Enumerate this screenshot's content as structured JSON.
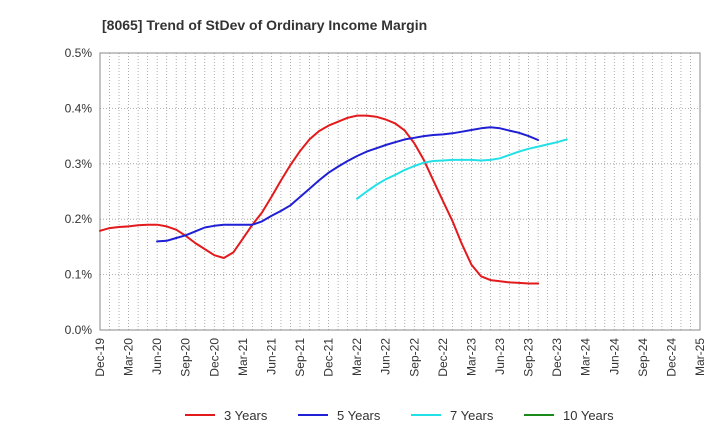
{
  "chart_data": {
    "type": "line",
    "title": "[8065]  Trend of StDev of Ordinary Income Margin",
    "xlabel": "",
    "ylabel": "",
    "x_ticks": [
      "Dec-19",
      "Mar-20",
      "Jun-20",
      "Sep-20",
      "Dec-20",
      "Mar-21",
      "Jun-21",
      "Sep-21",
      "Dec-21",
      "Mar-22",
      "Jun-22",
      "Sep-22",
      "Dec-22",
      "Mar-23",
      "Jun-23",
      "Sep-23",
      "Dec-23",
      "Mar-24",
      "Jun-24",
      "Sep-24",
      "Dec-24",
      "Mar-25"
    ],
    "y_ticks": [
      "0.0%",
      "0.1%",
      "0.2%",
      "0.3%",
      "0.4%",
      "0.5%"
    ],
    "ylim": [
      0,
      0.5
    ],
    "grid": true,
    "legend_position": "bottom",
    "series": [
      {
        "name": "3 Years",
        "color": "#e31a1c",
        "start_index": 0,
        "values": [
          0.179,
          0.184,
          0.186,
          0.187,
          0.189,
          0.19,
          0.19,
          0.187,
          0.181,
          0.17,
          0.157,
          0.146,
          0.135,
          0.13,
          0.14,
          0.165,
          0.19,
          0.212,
          0.24,
          0.27,
          0.298,
          0.323,
          0.344,
          0.359,
          0.369,
          0.376,
          0.383,
          0.387,
          0.387,
          0.385,
          0.38,
          0.373,
          0.36,
          0.337,
          0.307,
          0.27,
          0.233,
          0.197,
          0.155,
          0.118,
          0.097,
          0.09,
          0.088,
          0.086,
          0.085,
          0.084,
          0.084
        ]
      },
      {
        "name": "5 Years",
        "color": "#1f1fd6",
        "start_index": 6,
        "values": [
          0.16,
          0.161,
          0.166,
          0.171,
          0.178,
          0.185,
          0.188,
          0.19,
          0.19,
          0.19,
          0.19,
          0.196,
          0.206,
          0.215,
          0.225,
          0.24,
          0.255,
          0.27,
          0.284,
          0.295,
          0.305,
          0.314,
          0.322,
          0.328,
          0.334,
          0.339,
          0.344,
          0.347,
          0.35,
          0.352,
          0.353,
          0.355,
          0.358,
          0.361,
          0.364,
          0.366,
          0.364,
          0.36,
          0.356,
          0.35,
          0.343
        ]
      },
      {
        "name": "7 Years",
        "color": "#22e0e6",
        "start_index": 27,
        "values": [
          0.237,
          0.25,
          0.262,
          0.272,
          0.28,
          0.289,
          0.296,
          0.302,
          0.305,
          0.306,
          0.307,
          0.307,
          0.307,
          0.306,
          0.307,
          0.31,
          0.316,
          0.322,
          0.327,
          0.331,
          0.335,
          0.339,
          0.344
        ]
      },
      {
        "name": "10 Years",
        "color": "#1a8a1a",
        "start_index": 0,
        "values": []
      }
    ]
  }
}
